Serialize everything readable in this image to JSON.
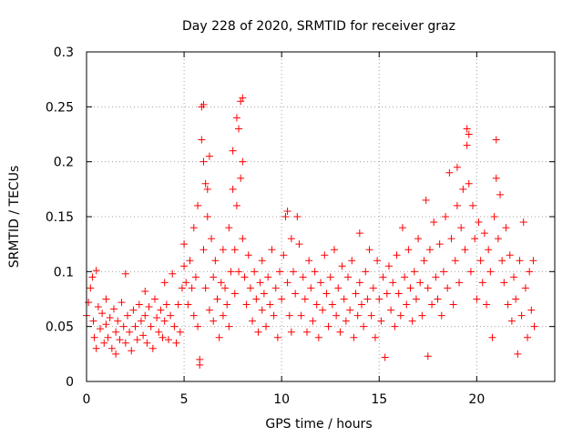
{
  "chart_data": {
    "type": "scatter",
    "title": "Day 228 of 2020, SRMTID for receiver graz",
    "xlabel": "GPS time / hours",
    "ylabel": "SRMTID / TECUs",
    "xlim": [
      0,
      24
    ],
    "ylim": [
      0,
      0.3
    ],
    "xticks": [
      0,
      5,
      10,
      15,
      20
    ],
    "xtick_labels": [
      "0",
      "5",
      "10",
      "15",
      "20"
    ],
    "yticks": [
      0,
      0.05,
      0.1,
      0.15,
      0.2,
      0.25,
      0.3
    ],
    "ytick_labels": [
      "0",
      "0.05",
      "0.1",
      "0.15",
      "0.2",
      "0.25",
      "0.3"
    ],
    "grid": true,
    "marker": "+",
    "color": "#ff0000",
    "series": [
      {
        "name": "SRMTID",
        "points": [
          [
            0.0,
            0.06
          ],
          [
            0.1,
            0.072
          ],
          [
            0.2,
            0.085
          ],
          [
            0.3,
            0.095
          ],
          [
            0.35,
            0.055
          ],
          [
            0.4,
            0.04
          ],
          [
            0.5,
            0.101
          ],
          [
            0.5,
            0.03
          ],
          [
            0.6,
            0.068
          ],
          [
            0.7,
            0.048
          ],
          [
            0.8,
            0.062
          ],
          [
            0.9,
            0.035
          ],
          [
            1.0,
            0.075
          ],
          [
            1.0,
            0.052
          ],
          [
            1.1,
            0.04
          ],
          [
            1.2,
            0.058
          ],
          [
            1.3,
            0.03
          ],
          [
            1.4,
            0.066
          ],
          [
            1.5,
            0.045
          ],
          [
            1.5,
            0.025
          ],
          [
            1.6,
            0.055
          ],
          [
            1.7,
            0.038
          ],
          [
            1.8,
            0.072
          ],
          [
            1.9,
            0.05
          ],
          [
            2.0,
            0.035
          ],
          [
            2.0,
            0.098
          ],
          [
            2.1,
            0.06
          ],
          [
            2.2,
            0.045
          ],
          [
            2.3,
            0.028
          ],
          [
            2.4,
            0.065
          ],
          [
            2.5,
            0.05
          ],
          [
            2.6,
            0.038
          ],
          [
            2.7,
            0.07
          ],
          [
            2.8,
            0.055
          ],
          [
            2.9,
            0.042
          ],
          [
            3.0,
            0.082
          ],
          [
            3.0,
            0.06
          ],
          [
            3.1,
            0.035
          ],
          [
            3.2,
            0.068
          ],
          [
            3.3,
            0.05
          ],
          [
            3.4,
            0.03
          ],
          [
            3.5,
            0.075
          ],
          [
            3.6,
            0.058
          ],
          [
            3.7,
            0.045
          ],
          [
            3.8,
            0.065
          ],
          [
            3.9,
            0.04
          ],
          [
            4.0,
            0.09
          ],
          [
            4.0,
            0.055
          ],
          [
            4.1,
            0.07
          ],
          [
            4.2,
            0.038
          ],
          [
            4.3,
            0.06
          ],
          [
            4.4,
            0.098
          ],
          [
            4.5,
            0.05
          ],
          [
            4.6,
            0.035
          ],
          [
            4.7,
            0.07
          ],
          [
            4.8,
            0.045
          ],
          [
            4.9,
            0.085
          ],
          [
            5.0,
            0.105
          ],
          [
            5.0,
            0.125
          ],
          [
            5.1,
            0.09
          ],
          [
            5.2,
            0.07
          ],
          [
            5.3,
            0.11
          ],
          [
            5.4,
            0.085
          ],
          [
            5.5,
            0.06
          ],
          [
            5.5,
            0.14
          ],
          [
            5.6,
            0.095
          ],
          [
            5.7,
            0.16
          ],
          [
            5.7,
            0.05
          ],
          [
            5.8,
            0.02
          ],
          [
            5.8,
            0.015
          ],
          [
            5.9,
            0.25
          ],
          [
            5.9,
            0.22
          ],
          [
            6.0,
            0.252
          ],
          [
            6.0,
            0.2
          ],
          [
            6.0,
            0.12
          ],
          [
            6.1,
            0.18
          ],
          [
            6.1,
            0.085
          ],
          [
            6.2,
            0.175
          ],
          [
            6.2,
            0.15
          ],
          [
            6.3,
            0.205
          ],
          [
            6.3,
            0.065
          ],
          [
            6.4,
            0.13
          ],
          [
            6.5,
            0.095
          ],
          [
            6.5,
            0.055
          ],
          [
            6.6,
            0.11
          ],
          [
            6.7,
            0.075
          ],
          [
            6.8,
            0.04
          ],
          [
            6.9,
            0.09
          ],
          [
            7.0,
            0.12
          ],
          [
            7.0,
            0.06
          ],
          [
            7.1,
            0.085
          ],
          [
            7.2,
            0.07
          ],
          [
            7.3,
            0.14
          ],
          [
            7.3,
            0.05
          ],
          [
            7.4,
            0.1
          ],
          [
            7.5,
            0.21
          ],
          [
            7.5,
            0.175
          ],
          [
            7.6,
            0.12
          ],
          [
            7.6,
            0.08
          ],
          [
            7.7,
            0.16
          ],
          [
            7.7,
            0.24
          ],
          [
            7.8,
            0.23
          ],
          [
            7.8,
            0.1
          ],
          [
            7.9,
            0.255
          ],
          [
            7.9,
            0.185
          ],
          [
            8.0,
            0.258
          ],
          [
            8.0,
            0.2
          ],
          [
            8.0,
            0.13
          ],
          [
            8.1,
            0.095
          ],
          [
            8.2,
            0.07
          ],
          [
            8.3,
            0.115
          ],
          [
            8.4,
            0.085
          ],
          [
            8.5,
            0.055
          ],
          [
            8.6,
            0.1
          ],
          [
            8.7,
            0.075
          ],
          [
            8.8,
            0.045
          ],
          [
            8.9,
            0.09
          ],
          [
            9.0,
            0.11
          ],
          [
            9.0,
            0.065
          ],
          [
            9.1,
            0.08
          ],
          [
            9.2,
            0.05
          ],
          [
            9.3,
            0.095
          ],
          [
            9.4,
            0.07
          ],
          [
            9.5,
            0.12
          ],
          [
            9.6,
            0.06
          ],
          [
            9.7,
            0.085
          ],
          [
            9.8,
            0.04
          ],
          [
            9.9,
            0.1
          ],
          [
            10.0,
            0.075
          ],
          [
            10.1,
            0.115
          ],
          [
            10.2,
            0.15
          ],
          [
            10.3,
            0.155
          ],
          [
            10.3,
            0.09
          ],
          [
            10.4,
            0.06
          ],
          [
            10.5,
            0.13
          ],
          [
            10.5,
            0.045
          ],
          [
            10.6,
            0.1
          ],
          [
            10.7,
            0.08
          ],
          [
            10.8,
            0.15
          ],
          [
            10.9,
            0.125
          ],
          [
            11.0,
            0.06
          ],
          [
            11.1,
            0.095
          ],
          [
            11.2,
            0.075
          ],
          [
            11.3,
            0.045
          ],
          [
            11.4,
            0.11
          ],
          [
            11.5,
            0.085
          ],
          [
            11.6,
            0.055
          ],
          [
            11.7,
            0.1
          ],
          [
            11.8,
            0.07
          ],
          [
            11.9,
            0.04
          ],
          [
            12.0,
            0.09
          ],
          [
            12.1,
            0.065
          ],
          [
            12.2,
            0.115
          ],
          [
            12.3,
            0.08
          ],
          [
            12.4,
            0.05
          ],
          [
            12.5,
            0.095
          ],
          [
            12.6,
            0.07
          ],
          [
            12.7,
            0.12
          ],
          [
            12.8,
            0.06
          ],
          [
            12.9,
            0.085
          ],
          [
            13.0,
            0.045
          ],
          [
            13.1,
            0.105
          ],
          [
            13.2,
            0.075
          ],
          [
            13.3,
            0.055
          ],
          [
            13.4,
            0.095
          ],
          [
            13.5,
            0.065
          ],
          [
            13.6,
            0.11
          ],
          [
            13.7,
            0.04
          ],
          [
            13.8,
            0.08
          ],
          [
            13.9,
            0.06
          ],
          [
            14.0,
            0.135
          ],
          [
            14.0,
            0.09
          ],
          [
            14.1,
            0.07
          ],
          [
            14.2,
            0.05
          ],
          [
            14.3,
            0.1
          ],
          [
            14.4,
            0.075
          ],
          [
            14.5,
            0.12
          ],
          [
            14.6,
            0.06
          ],
          [
            14.7,
            0.085
          ],
          [
            14.8,
            0.04
          ],
          [
            14.9,
            0.11
          ],
          [
            15.0,
            0.075
          ],
          [
            15.1,
            0.055
          ],
          [
            15.2,
            0.095
          ],
          [
            15.3,
            0.022
          ],
          [
            15.4,
            0.08
          ],
          [
            15.5,
            0.105
          ],
          [
            15.6,
            0.065
          ],
          [
            15.7,
            0.09
          ],
          [
            15.8,
            0.05
          ],
          [
            15.9,
            0.115
          ],
          [
            16.0,
            0.08
          ],
          [
            16.1,
            0.06
          ],
          [
            16.2,
            0.14
          ],
          [
            16.3,
            0.095
          ],
          [
            16.4,
            0.07
          ],
          [
            16.5,
            0.12
          ],
          [
            16.6,
            0.085
          ],
          [
            16.7,
            0.055
          ],
          [
            16.8,
            0.1
          ],
          [
            16.9,
            0.075
          ],
          [
            17.0,
            0.13
          ],
          [
            17.1,
            0.09
          ],
          [
            17.2,
            0.06
          ],
          [
            17.3,
            0.11
          ],
          [
            17.4,
            0.165
          ],
          [
            17.5,
            0.023
          ],
          [
            17.5,
            0.085
          ],
          [
            17.6,
            0.12
          ],
          [
            17.7,
            0.07
          ],
          [
            17.8,
            0.145
          ],
          [
            17.9,
            0.095
          ],
          [
            18.0,
            0.075
          ],
          [
            18.1,
            0.125
          ],
          [
            18.2,
            0.06
          ],
          [
            18.3,
            0.1
          ],
          [
            18.4,
            0.15
          ],
          [
            18.5,
            0.085
          ],
          [
            18.6,
            0.19
          ],
          [
            18.7,
            0.13
          ],
          [
            18.8,
            0.07
          ],
          [
            18.9,
            0.11
          ],
          [
            19.0,
            0.195
          ],
          [
            19.0,
            0.16
          ],
          [
            19.1,
            0.09
          ],
          [
            19.2,
            0.14
          ],
          [
            19.3,
            0.175
          ],
          [
            19.4,
            0.12
          ],
          [
            19.5,
            0.23
          ],
          [
            19.5,
            0.215
          ],
          [
            19.6,
            0.225
          ],
          [
            19.6,
            0.18
          ],
          [
            19.7,
            0.1
          ],
          [
            19.8,
            0.16
          ],
          [
            19.9,
            0.13
          ],
          [
            20.0,
            0.075
          ],
          [
            20.1,
            0.145
          ],
          [
            20.2,
            0.11
          ],
          [
            20.3,
            0.09
          ],
          [
            20.4,
            0.135
          ],
          [
            20.5,
            0.07
          ],
          [
            20.6,
            0.12
          ],
          [
            20.7,
            0.1
          ],
          [
            20.8,
            0.04
          ],
          [
            20.9,
            0.15
          ],
          [
            21.0,
            0.22
          ],
          [
            21.0,
            0.185
          ],
          [
            21.1,
            0.13
          ],
          [
            21.2,
            0.17
          ],
          [
            21.3,
            0.11
          ],
          [
            21.4,
            0.09
          ],
          [
            21.5,
            0.14
          ],
          [
            21.6,
            0.07
          ],
          [
            21.7,
            0.115
          ],
          [
            21.8,
            0.055
          ],
          [
            21.9,
            0.095
          ],
          [
            22.0,
            0.075
          ],
          [
            22.1,
            0.025
          ],
          [
            22.2,
            0.11
          ],
          [
            22.3,
            0.06
          ],
          [
            22.4,
            0.145
          ],
          [
            22.5,
            0.085
          ],
          [
            22.6,
            0.04
          ],
          [
            22.7,
            0.1
          ],
          [
            22.8,
            0.065
          ],
          [
            22.9,
            0.11
          ],
          [
            22.95,
            0.05
          ]
        ]
      }
    ]
  }
}
